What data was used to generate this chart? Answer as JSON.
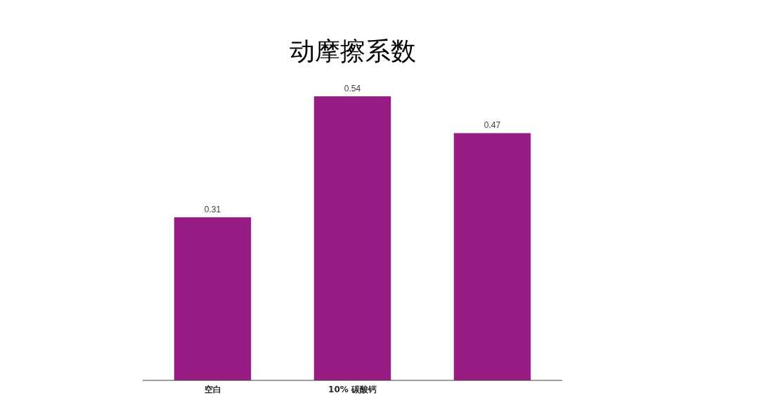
{
  "chart_data": {
    "type": "bar",
    "title": "动摩擦系数",
    "categories": [
      "空白",
      "10% 碳酸钙",
      null
    ],
    "values": [
      0.31,
      0.54,
      0.47
    ],
    "color": "#991b84",
    "data_labels": true
  }
}
